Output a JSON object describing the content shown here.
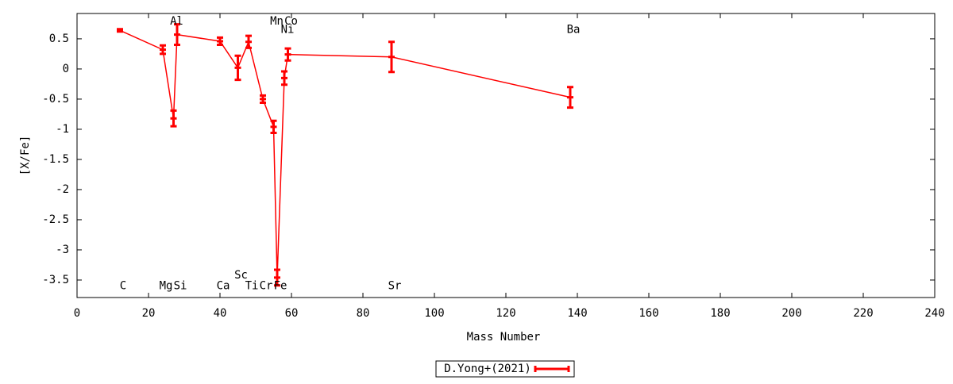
{
  "chart_data": {
    "type": "errorlines",
    "xlabel": "Mass Number",
    "ylabel": "[X/Fe]",
    "xlim": [
      0,
      240
    ],
    "ylim": [
      -3.79,
      0.92
    ],
    "xticks": [
      0,
      20,
      40,
      60,
      80,
      100,
      120,
      140,
      160,
      180,
      200,
      220,
      240
    ],
    "yticks": [
      0.5,
      0,
      -0.5,
      -1,
      -1.5,
      -2,
      -2.5,
      -3,
      -3.5
    ],
    "grid": false,
    "legend": "bottom",
    "series": [
      {
        "name": "D.Yong+(2021)",
        "color": "#ff0000",
        "x": [
          12,
          24,
          27,
          28,
          40,
          45,
          48,
          52,
          55,
          56,
          58,
          59,
          88,
          138
        ],
        "values": [
          0.64,
          0.32,
          -0.82,
          0.57,
          0.46,
          0.02,
          0.45,
          -0.5,
          -0.96,
          -3.46,
          -0.15,
          0.24,
          0.2,
          -0.47
        ],
        "errors": [
          0.02,
          0.07,
          0.13,
          0.17,
          0.06,
          0.2,
          0.1,
          0.06,
          0.1,
          0.13,
          0.11,
          0.1,
          0.25,
          0.17
        ]
      }
    ],
    "annotations": [
      {
        "text": "C",
        "x": 12,
        "y": -3.6
      },
      {
        "text": "Mg",
        "x": 24,
        "y": -3.6
      },
      {
        "text": "Si",
        "x": 28,
        "y": -3.6
      },
      {
        "text": "Al",
        "x": 27,
        "y": 0.79
      },
      {
        "text": "Ca",
        "x": 40,
        "y": -3.6
      },
      {
        "text": "Sc",
        "x": 45,
        "y": -3.42
      },
      {
        "text": "Ti",
        "x": 48,
        "y": -3.6
      },
      {
        "text": "Cr",
        "x": 52,
        "y": -3.6
      },
      {
        "text": "Fe",
        "x": 56,
        "y": -3.6
      },
      {
        "text": "Mn",
        "x": 55,
        "y": 0.79
      },
      {
        "text": "Co",
        "x": 59,
        "y": 0.79
      },
      {
        "text": "Ni",
        "x": 58,
        "y": 0.65
      },
      {
        "text": "Sr",
        "x": 88,
        "y": -3.6
      },
      {
        "text": "Ba",
        "x": 138,
        "y": 0.65
      }
    ]
  }
}
